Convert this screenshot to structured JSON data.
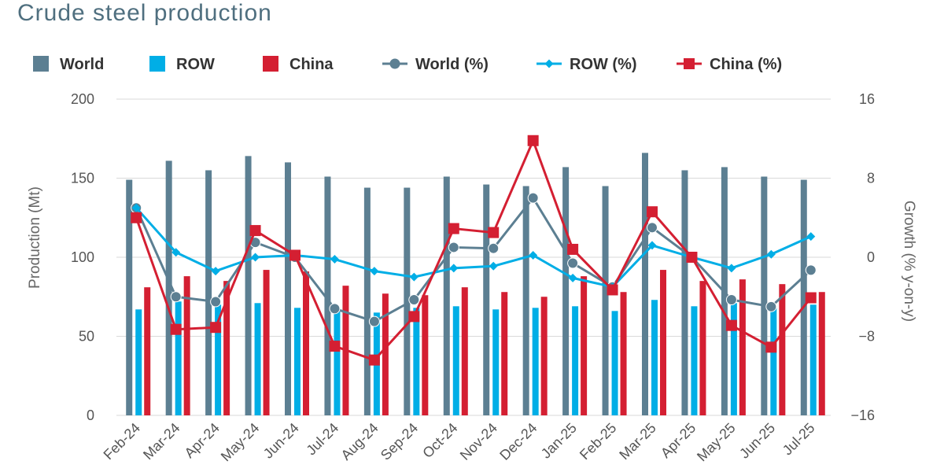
{
  "chart_data": {
    "type": "bar",
    "title": "Crude steel production",
    "categories": [
      "Feb-24",
      "Mar-24",
      "Apr-24",
      "May-24",
      "Jun-24",
      "Jul-24",
      "Aug-24",
      "Sep-24",
      "Oct-24",
      "Nov-24",
      "Dec-24",
      "Jan-25",
      "Feb-25",
      "Mar-25",
      "Apr-25",
      "May-25",
      "Jun-25",
      "Jul-25"
    ],
    "ylabel": "Production (Mt)",
    "y2label": "Growth (% y-on-y)",
    "ylim": [
      0,
      200
    ],
    "y2lim": [
      -16,
      16
    ],
    "yticks": [
      "0",
      "50",
      "100",
      "150",
      "200"
    ],
    "y2ticks": [
      "−16",
      "−8",
      "0",
      "8",
      "16"
    ],
    "legend_position": "top",
    "series": [
      {
        "name": "World",
        "kind": "bar",
        "axis": "left",
        "color": "#5c7f92",
        "values": [
          149,
          161,
          155,
          164,
          160,
          151,
          144,
          144,
          151,
          146,
          145,
          157,
          145,
          166,
          155,
          157,
          151,
          149
        ]
      },
      {
        "name": "ROW",
        "kind": "bar",
        "axis": "left",
        "color": "#00aee6",
        "values": [
          67,
          72,
          70,
          71,
          68,
          68,
          65,
          68,
          69,
          67,
          68,
          69,
          66,
          73,
          69,
          71,
          68,
          70
        ]
      },
      {
        "name": "China",
        "kind": "bar",
        "axis": "left",
        "color": "#d41f32",
        "values": [
          81,
          88,
          85,
          92,
          91,
          82,
          77,
          76,
          81,
          78,
          75,
          88,
          78,
          92,
          85,
          86,
          83,
          78
        ]
      },
      {
        "name": "World (%)",
        "kind": "line",
        "axis": "right",
        "color": "#5c7f92",
        "marker": "circle",
        "values": [
          5,
          -4,
          -4.5,
          1.5,
          0,
          -5.2,
          -6.5,
          -4.3,
          1,
          0.9,
          6,
          -0.6,
          -3,
          3,
          0,
          -4.3,
          -5,
          -1.3
        ]
      },
      {
        "name": "ROW (%)",
        "kind": "line",
        "axis": "right",
        "color": "#00aee6",
        "marker": "diamond",
        "values": [
          5,
          0.5,
          -1.4,
          0,
          0.2,
          -0.2,
          -1.4,
          -2,
          -1.1,
          -0.9,
          0.2,
          -2.1,
          -3,
          1.2,
          0,
          -1.1,
          0.3,
          2.1
        ]
      },
      {
        "name": "China (%)",
        "kind": "line",
        "axis": "right",
        "color": "#d41f32",
        "marker": "square",
        "values": [
          4,
          -7.3,
          -7.1,
          2.7,
          0.2,
          -9,
          -10.4,
          -6,
          2.9,
          2.5,
          11.8,
          0.8,
          -3.3,
          4.6,
          0,
          -6.9,
          -9.1,
          -4.1
        ]
      }
    ]
  }
}
